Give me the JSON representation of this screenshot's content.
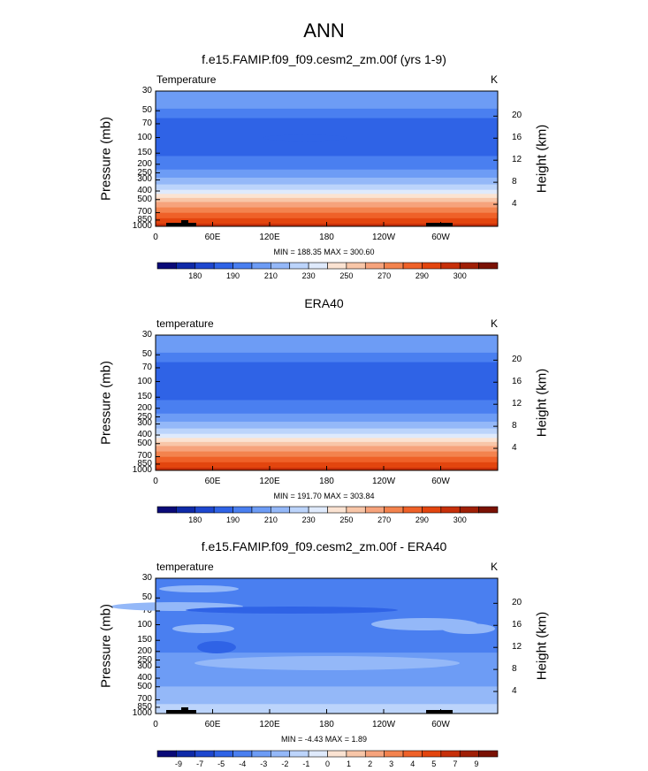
{
  "main_title": "ANN",
  "chart_data": [
    {
      "type": "contour",
      "title": "f.e15.FAMIP.f09_f09.cesm2_zm.00f (yrs 1-9)",
      "left_label": "Temperature",
      "right_label": "K",
      "ylabel": "Pressure (mb)",
      "ylabel_right": "Height (km)",
      "x_ticks": [
        "0",
        "60E",
        "120E",
        "180",
        "120W",
        "60W"
      ],
      "x_tick_values": [
        0,
        60,
        120,
        180,
        240,
        300
      ],
      "xlim": [
        0,
        360
      ],
      "y_ticks": [
        "30",
        "50",
        "70",
        "100",
        "150",
        "200",
        "250",
        "300",
        "400",
        "500",
        "700",
        "850",
        "1000"
      ],
      "y_tick_values": [
        30,
        50,
        70,
        100,
        150,
        200,
        250,
        300,
        400,
        500,
        700,
        850,
        1000
      ],
      "ylim": [
        1000,
        30
      ],
      "y_scale": "log",
      "height_ticks": [
        "4",
        "8",
        "12",
        "16",
        "20"
      ],
      "height_tick_values": [
        4,
        8,
        12,
        16,
        20
      ],
      "min_max_text": "MIN = 188.35  MAX = 300.60",
      "colorbar_labels": [
        "180",
        "190",
        "210",
        "230",
        "250",
        "270",
        "290",
        "300"
      ],
      "colorbar_colors": [
        "#0a0a78",
        "#0f2aa8",
        "#1e47cf",
        "#2f63e6",
        "#4a7ff0",
        "#6d9cf5",
        "#94b8f8",
        "#bcd4fb",
        "#dfeafc",
        "#fbe3d2",
        "#f8c6a8",
        "#f6a37c",
        "#f3834e",
        "#ef6128",
        "#e3450e",
        "#c7300a",
        "#a01f06",
        "#7a1104"
      ]
    },
    {
      "type": "contour",
      "title": "ERA40",
      "left_label": "temperature",
      "right_label": "K",
      "ylabel": "Pressure (mb)",
      "ylabel_right": "Height (km)",
      "x_ticks": [
        "0",
        "60E",
        "120E",
        "180",
        "120W",
        "60W"
      ],
      "x_tick_values": [
        0,
        60,
        120,
        180,
        240,
        300
      ],
      "xlim": [
        0,
        360
      ],
      "y_ticks": [
        "30",
        "50",
        "70",
        "100",
        "150",
        "200",
        "250",
        "300",
        "400",
        "500",
        "700",
        "850",
        "1000"
      ],
      "y_tick_values": [
        30,
        50,
        70,
        100,
        150,
        200,
        250,
        300,
        400,
        500,
        700,
        850,
        1000
      ],
      "ylim": [
        1000,
        30
      ],
      "y_scale": "log",
      "height_ticks": [
        "4",
        "8",
        "12",
        "16",
        "20"
      ],
      "height_tick_values": [
        4,
        8,
        12,
        16,
        20
      ],
      "min_max_text": "MIN = 191.70  MAX = 303.84",
      "colorbar_labels": [
        "180",
        "190",
        "210",
        "230",
        "250",
        "270",
        "290",
        "300"
      ],
      "colorbar_colors": [
        "#0a0a78",
        "#0f2aa8",
        "#1e47cf",
        "#2f63e6",
        "#4a7ff0",
        "#6d9cf5",
        "#94b8f8",
        "#bcd4fb",
        "#dfeafc",
        "#fbe3d2",
        "#f8c6a8",
        "#f6a37c",
        "#f3834e",
        "#ef6128",
        "#e3450e",
        "#c7300a",
        "#a01f06",
        "#7a1104"
      ]
    },
    {
      "type": "contour",
      "title": "f.e15.FAMIP.f09_f09.cesm2_zm.00f - ERA40",
      "left_label": "temperature",
      "right_label": "K",
      "ylabel": "Pressure (mb)",
      "ylabel_right": "Height (km)",
      "x_ticks": [
        "0",
        "60E",
        "120E",
        "180",
        "120W",
        "60W"
      ],
      "x_tick_values": [
        0,
        60,
        120,
        180,
        240,
        300
      ],
      "xlim": [
        0,
        360
      ],
      "y_ticks": [
        "30",
        "50",
        "70",
        "100",
        "150",
        "200",
        "250",
        "300",
        "400",
        "500",
        "700",
        "850",
        "1000"
      ],
      "y_tick_values": [
        30,
        50,
        70,
        100,
        150,
        200,
        250,
        300,
        400,
        500,
        700,
        850,
        1000
      ],
      "ylim": [
        1000,
        30
      ],
      "y_scale": "log",
      "height_ticks": [
        "4",
        "8",
        "12",
        "16",
        "20"
      ],
      "height_tick_values": [
        4,
        8,
        12,
        16,
        20
      ],
      "min_max_text": "MIN = -4.43  MAX =  1.89",
      "colorbar_labels": [
        "-9",
        "-7",
        "-5",
        "-4",
        "-3",
        "-2",
        "-1",
        "0",
        "1",
        "2",
        "3",
        "4",
        "5",
        "7",
        "9"
      ],
      "colorbar_colors": [
        "#0a0a78",
        "#0f2aa8",
        "#1e47cf",
        "#2f63e6",
        "#4a7ff0",
        "#6d9cf5",
        "#94b8f8",
        "#bcd4fb",
        "#dfeafc",
        "#fbe3d2",
        "#f8c6a8",
        "#f6a37c",
        "#f3834e",
        "#ef6128",
        "#e3450e",
        "#c7300a",
        "#a01f06",
        "#7a1104"
      ]
    }
  ]
}
